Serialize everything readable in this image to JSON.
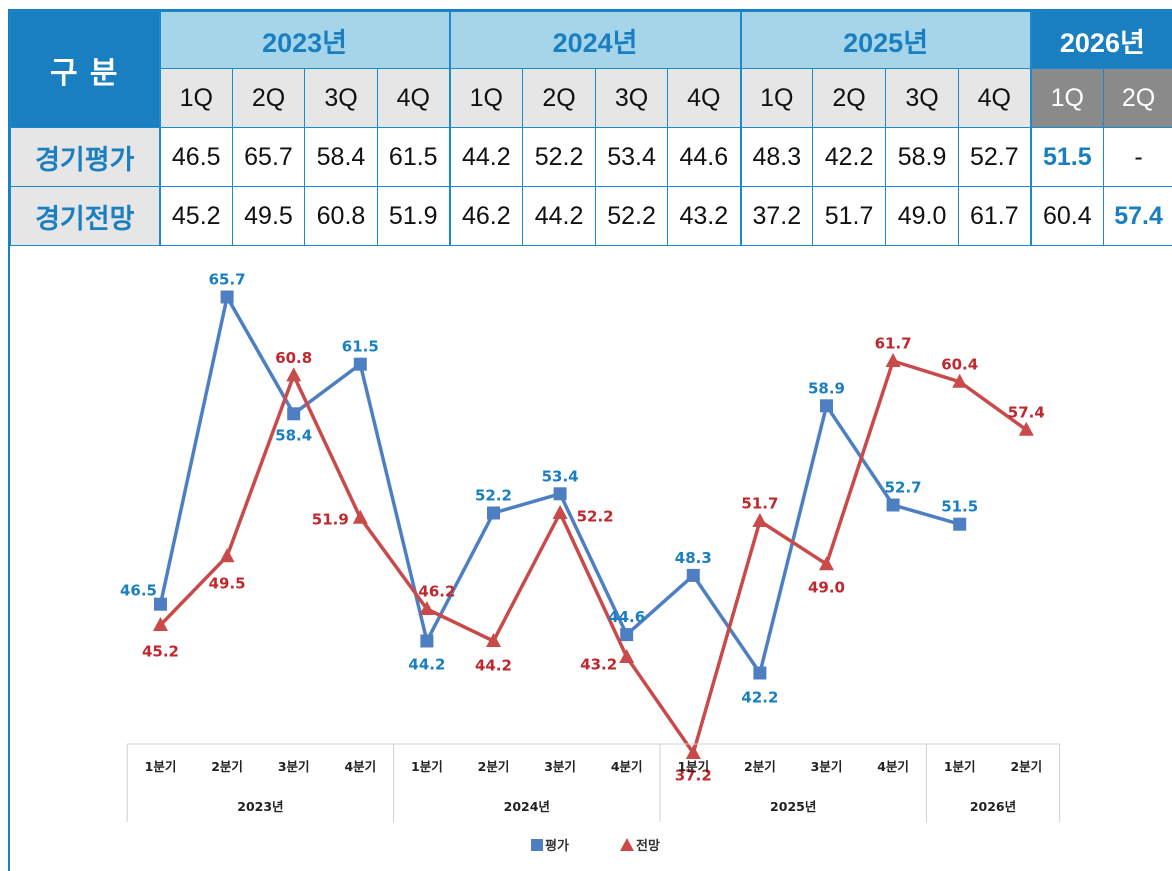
{
  "table": {
    "corner_label": "구 분",
    "years": [
      "2023년",
      "2024년",
      "2025년",
      "2026년"
    ],
    "quarters": [
      "1Q",
      "2Q",
      "3Q",
      "4Q",
      "1Q",
      "2Q",
      "3Q",
      "4Q",
      "1Q",
      "2Q",
      "3Q",
      "4Q",
      "1Q",
      "2Q"
    ],
    "rows": [
      {
        "label": "경기평가",
        "values": [
          "46.5",
          "65.7",
          "58.4",
          "61.5",
          "44.2",
          "52.2",
          "53.4",
          "44.6",
          "48.3",
          "42.2",
          "58.9",
          "52.7",
          "51.5",
          "-"
        ]
      },
      {
        "label": "경기전망",
        "values": [
          "45.2",
          "49.5",
          "60.8",
          "51.9",
          "46.2",
          "44.2",
          "52.2",
          "43.2",
          "37.2",
          "51.7",
          "49.0",
          "61.7",
          "60.4",
          "57.4"
        ]
      }
    ]
  },
  "chart_data": {
    "type": "line",
    "x_quarter_labels": [
      "1분기",
      "2분기",
      "3분기",
      "4분기",
      "1분기",
      "2분기",
      "3분기",
      "4분기",
      "1분기",
      "2분기",
      "3분기",
      "4분기",
      "1분기",
      "2분기"
    ],
    "x_year_groups": [
      {
        "label": "2023년",
        "span": 4
      },
      {
        "label": "2024년",
        "span": 4
      },
      {
        "label": "2025년",
        "span": 4
      },
      {
        "label": "2026년",
        "span": 2
      }
    ],
    "series": [
      {
        "name": "평가",
        "color": "#4e7fc3",
        "label_color": "#1a7fc1",
        "marker": "square",
        "values": [
          46.5,
          65.7,
          58.4,
          61.5,
          44.2,
          52.2,
          53.4,
          44.6,
          48.3,
          42.2,
          58.9,
          52.7,
          51.5,
          null
        ]
      },
      {
        "name": "전망",
        "color": "#c94a4a",
        "label_color": "#c0282d",
        "marker": "triangle",
        "values": [
          45.2,
          49.5,
          60.8,
          51.9,
          46.2,
          44.2,
          52.2,
          43.2,
          37.2,
          51.7,
          49.0,
          61.7,
          60.4,
          57.4
        ]
      }
    ],
    "legend_position": "bottom",
    "grid": false
  },
  "colors": {
    "accent": "#1a7fc1",
    "header_light": "#a6d5ea",
    "quarter_bg": "#e6e6e6",
    "highlight_gray": "#8a8a8a"
  }
}
